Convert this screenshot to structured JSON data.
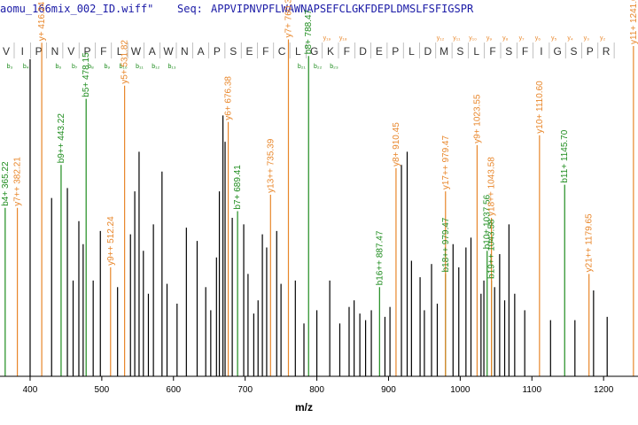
{
  "header": {
    "file": "aomu_166mix_002_ID.wiff\"",
    "seq_label": "Seq:",
    "sequence": "APPVIPNVPFLWAWNAPSEFCLGKFDEPLDMSLFSFIGSPR"
  },
  "colors": {
    "b_ion": "#1e8c1e",
    "y_ion": "#e8862a",
    "unassigned": "#000000",
    "axis": "#000000",
    "grid_line": "#bbbbbb"
  },
  "chart_data": {
    "type": "bar",
    "xlabel": "m/z",
    "ylabel": "",
    "xlim": [
      358,
      1248
    ],
    "ylim": [
      0,
      100
    ],
    "x_ticks": [
      400,
      500,
      600,
      700,
      800,
      900,
      1000,
      1100,
      1200
    ],
    "sequence_ladder": {
      "residues": [
        "V",
        "I",
        "P",
        "N",
        "V",
        "P",
        "F",
        "L",
        "W",
        "A",
        "W",
        "N",
        "A",
        "P",
        "S",
        "E",
        "F",
        "C",
        "L",
        "G",
        "K",
        "F",
        "D",
        "E",
        "P",
        "L",
        "D",
        "M",
        "S",
        "L",
        "F",
        "S",
        "F",
        "I",
        "G",
        "S",
        "P",
        "R"
      ],
      "b_labels": [
        "b₃",
        "b₄",
        "",
        "b₆",
        "b₇",
        "b₈",
        "b₉",
        "b₁₀",
        "b₁₁",
        "b₁₂",
        "b₁₃",
        "",
        "",
        "",
        "",
        "",
        "",
        "",
        "b₂₁",
        "b₂₂",
        "b₂₃"
      ],
      "y_labels": [
        "y₁₉",
        "y₁₈",
        "",
        "",
        "",
        "",
        "",
        "y₁₂",
        "y₁₁",
        "y₁₀",
        "y₉",
        "y₈",
        "y₇",
        "y₆",
        "y₅",
        "y₄",
        "y₃",
        "y₂"
      ]
    },
    "series": [
      {
        "name": "b ions",
        "points": [
          {
            "x": 365.22,
            "y": 51,
            "label": "b4+ 365.22"
          },
          {
            "x": 443.22,
            "y": 64,
            "label": "b9++ 443.22"
          },
          {
            "x": 478.15,
            "y": 84,
            "label": "b5+ 478.15"
          },
          {
            "x": 689.41,
            "y": 50,
            "label": "b7+ 689.41"
          },
          {
            "x": 788.47,
            "y": 97,
            "label": "b8+ 788.47"
          },
          {
            "x": 887.47,
            "y": 27,
            "label": "b16++ 887.47"
          },
          {
            "x": 979.47,
            "y": 31,
            "label": "b18++ 979.47"
          },
          {
            "x": 1037.56,
            "y": 38,
            "label": "b10+ 1037.56"
          },
          {
            "x": 1043.58,
            "y": 29,
            "label": "b19++ 1043.58"
          },
          {
            "x": 1145.7,
            "y": 58,
            "label": "b11+ 1145.70"
          }
        ]
      },
      {
        "name": "y ions",
        "points": [
          {
            "x": 382.21,
            "y": 51,
            "label": "y7++ 382.21"
          },
          {
            "x": 416.24,
            "y": 101,
            "label": "y+ 416.24"
          },
          {
            "x": 512.24,
            "y": 33,
            "label": "y9++ 512.24"
          },
          {
            "x": 531.82,
            "y": 88,
            "label": "y5+ 531.82"
          },
          {
            "x": 676.38,
            "y": 77,
            "label": "y6+ 676.38"
          },
          {
            "x": 735.39,
            "y": 55,
            "label": "y13++ 735.39"
          },
          {
            "x": 760.35,
            "y": 102,
            "label": "y7+ 760.35"
          },
          {
            "x": 910.45,
            "y": 63,
            "label": "y8+ 910.45"
          },
          {
            "x": 979.47,
            "y": 56,
            "label": "y17++ 979.47"
          },
          {
            "x": 1023.55,
            "y": 70,
            "label": "y9+ 1023.55"
          },
          {
            "x": 1043.58,
            "y": 48,
            "label": "y18++ 1043.58"
          },
          {
            "x": 1110.6,
            "y": 73,
            "label": "y10+ 1110.60"
          },
          {
            "x": 1179.65,
            "y": 31,
            "label": "y21++ 1179.65"
          },
          {
            "x": 1241.65,
            "y": 100,
            "label": "y11+ 1241.65"
          }
        ]
      },
      {
        "name": "unassigned",
        "points": [
          {
            "x": 400,
            "y": 96
          },
          {
            "x": 430,
            "y": 54
          },
          {
            "x": 452,
            "y": 57
          },
          {
            "x": 460,
            "y": 29
          },
          {
            "x": 468,
            "y": 47
          },
          {
            "x": 474,
            "y": 40
          },
          {
            "x": 488,
            "y": 29
          },
          {
            "x": 498,
            "y": 44
          },
          {
            "x": 522,
            "y": 27
          },
          {
            "x": 540,
            "y": 43
          },
          {
            "x": 546,
            "y": 56
          },
          {
            "x": 552,
            "y": 68
          },
          {
            "x": 558,
            "y": 38
          },
          {
            "x": 565,
            "y": 25
          },
          {
            "x": 572,
            "y": 46
          },
          {
            "x": 584,
            "y": 62
          },
          {
            "x": 591,
            "y": 28
          },
          {
            "x": 605,
            "y": 22
          },
          {
            "x": 618,
            "y": 45
          },
          {
            "x": 633,
            "y": 41
          },
          {
            "x": 645,
            "y": 27
          },
          {
            "x": 652,
            "y": 20
          },
          {
            "x": 660,
            "y": 36
          },
          {
            "x": 664,
            "y": 56
          },
          {
            "x": 669,
            "y": 79
          },
          {
            "x": 672,
            "y": 71
          },
          {
            "x": 682,
            "y": 48
          },
          {
            "x": 698,
            "y": 46
          },
          {
            "x": 704,
            "y": 31
          },
          {
            "x": 712,
            "y": 19
          },
          {
            "x": 718,
            "y": 23
          },
          {
            "x": 724,
            "y": 43
          },
          {
            "x": 730,
            "y": 39
          },
          {
            "x": 744,
            "y": 44
          },
          {
            "x": 750,
            "y": 28
          },
          {
            "x": 770,
            "y": 29
          },
          {
            "x": 782,
            "y": 16
          },
          {
            "x": 800,
            "y": 20
          },
          {
            "x": 818,
            "y": 29
          },
          {
            "x": 832,
            "y": 16
          },
          {
            "x": 845,
            "y": 21
          },
          {
            "x": 852,
            "y": 23
          },
          {
            "x": 860,
            "y": 19
          },
          {
            "x": 868,
            "y": 17
          },
          {
            "x": 876,
            "y": 20
          },
          {
            "x": 895,
            "y": 18
          },
          {
            "x": 902,
            "y": 21
          },
          {
            "x": 918,
            "y": 64
          },
          {
            "x": 926,
            "y": 68
          },
          {
            "x": 932,
            "y": 35
          },
          {
            "x": 944,
            "y": 30
          },
          {
            "x": 950,
            "y": 20
          },
          {
            "x": 960,
            "y": 34
          },
          {
            "x": 968,
            "y": 22
          },
          {
            "x": 990,
            "y": 40
          },
          {
            "x": 998,
            "y": 33
          },
          {
            "x": 1008,
            "y": 39
          },
          {
            "x": 1015,
            "y": 42
          },
          {
            "x": 1029,
            "y": 25
          },
          {
            "x": 1033,
            "y": 29
          },
          {
            "x": 1048,
            "y": 27
          },
          {
            "x": 1055,
            "y": 37
          },
          {
            "x": 1062,
            "y": 23
          },
          {
            "x": 1068,
            "y": 46
          },
          {
            "x": 1076,
            "y": 25
          },
          {
            "x": 1090,
            "y": 20
          },
          {
            "x": 1126,
            "y": 17
          },
          {
            "x": 1160,
            "y": 17
          },
          {
            "x": 1186,
            "y": 26
          },
          {
            "x": 1205,
            "y": 18
          }
        ]
      }
    ]
  }
}
